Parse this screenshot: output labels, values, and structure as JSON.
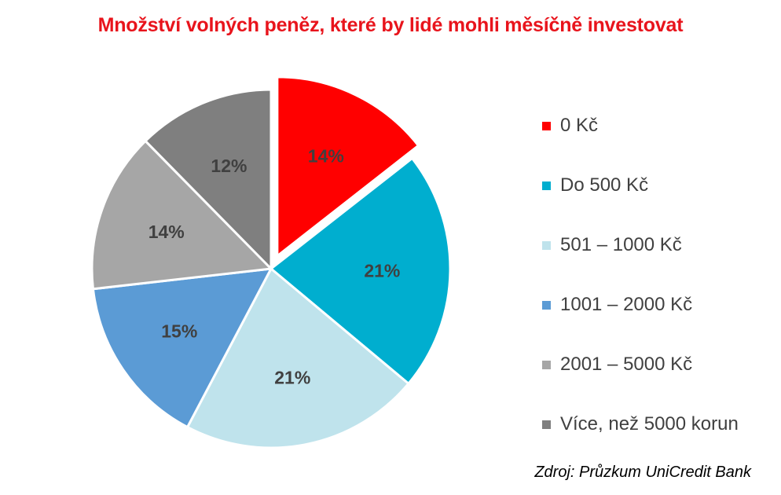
{
  "chart_data": {
    "type": "pie",
    "title": "Množství volných peněz, které by lidé mohli měsíčně investovat",
    "categories": [
      "0 Kč",
      "Do 500 Kč",
      "501 – 1000 Kč",
      "1001 – 2000 Kč",
      "2001 – 5000 Kč",
      "Více, než 5000 korun"
    ],
    "values": [
      14,
      21,
      21,
      15,
      14,
      12
    ],
    "labels": [
      "14%",
      "21%",
      "21%",
      "15%",
      "14%",
      "12%"
    ],
    "colors": [
      "#ff0000",
      "#00aecf",
      "#bfe3ec",
      "#5b9bd5",
      "#a6a6a6",
      "#7f7f7f"
    ],
    "exploded": "0 Kč",
    "legend_position": "right",
    "source": "Zdroj: Průzkum UniCredit Bank"
  }
}
